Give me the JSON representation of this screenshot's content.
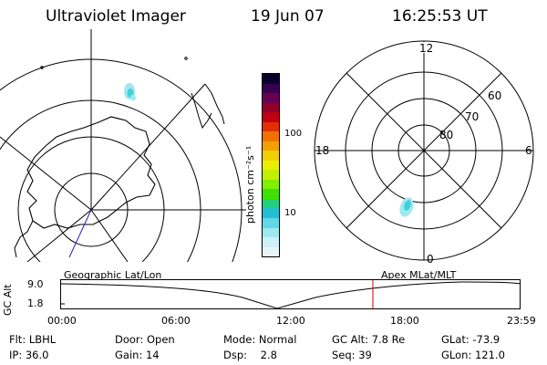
{
  "header": {
    "title": "Ultraviolet Imager",
    "date": "19 Jun 07",
    "time": "16:25:53 UT"
  },
  "colorbar": {
    "label": "photon cm⁻²s⁻¹",
    "ticks": [
      "100",
      "10"
    ],
    "colors": [
      "#0a0030",
      "#3a0050",
      "#6a0050",
      "#900028",
      "#c00010",
      "#e03000",
      "#f07000",
      "#f0a000",
      "#f0d000",
      "#e8f000",
      "#c0f000",
      "#80f000",
      "#40e000",
      "#20d080",
      "#20c0d0",
      "#60d8e8",
      "#a0e8f0",
      "#d0f0f8",
      "#e8f4f8"
    ]
  },
  "polar_plot": {
    "mlt_labels": [
      "12",
      "6",
      "0",
      "18"
    ],
    "lat_labels": [
      "60",
      "70",
      "80"
    ]
  },
  "timeline": {
    "ylabel": "GC Alt",
    "left_label": "Geographic Lat/Lon",
    "right_label": "Apex MLat/MLT",
    "y_ticks": [
      "9.0",
      "1.8"
    ],
    "x_ticks": [
      "00:00",
      "06:00",
      "12:00",
      "18:00",
      "23:59"
    ],
    "marker_color": "#cc0000"
  },
  "info": {
    "flt_label": "Flt:",
    "flt_value": "LBHL",
    "ip_label": "IP:",
    "ip_value": "36.0",
    "door_label": "Door:",
    "door_value": "Open",
    "gain_label": "Gain:",
    "gain_value": "14",
    "mode_label": "Mode:",
    "mode_value": "Normal",
    "dsp_label": "Dsp:",
    "dsp_value": "2.8",
    "gcalt_label": "GC Alt:",
    "gcalt_value": "7.8 Re",
    "seq_label": "Seq:",
    "seq_value": "39",
    "glat_label": "GLat:",
    "glat_value": "-73.9",
    "glon_label": "GLon:",
    "glon_value": "121.0"
  }
}
